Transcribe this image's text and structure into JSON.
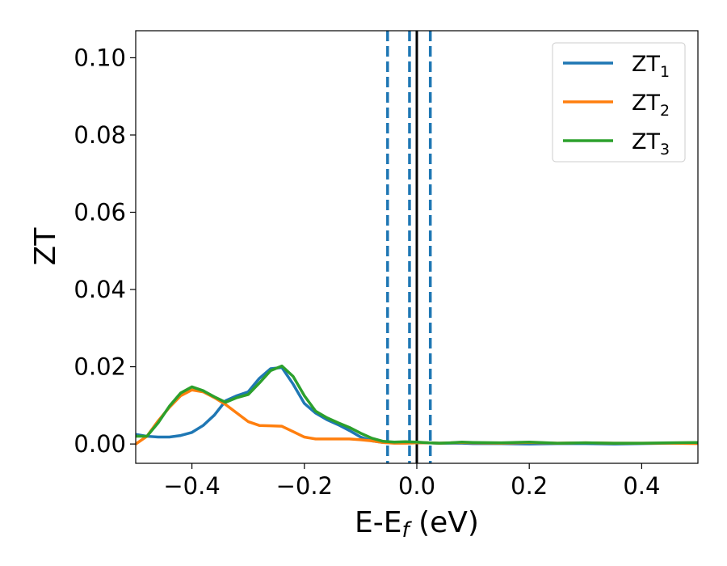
{
  "chart_data": {
    "type": "line",
    "xlabel": "E-E",
    "xlabel_sub": "f",
    "xlabel_unit": " (eV)",
    "ylabel": "ZT",
    "xlim": [
      -0.5,
      0.5
    ],
    "ylim": [
      -0.005,
      0.107
    ],
    "xticks": [
      -0.4,
      -0.2,
      0.0,
      0.2,
      0.4
    ],
    "xtick_labels": [
      "−0.4",
      "−0.2",
      "0.0",
      "0.2",
      "0.4"
    ],
    "yticks": [
      0.0,
      0.02,
      0.04,
      0.06,
      0.08,
      0.1
    ],
    "ytick_labels": [
      "0.00",
      "0.02",
      "0.04",
      "0.06",
      "0.08",
      "0.10"
    ],
    "grid": false,
    "legend_position": "top-right",
    "series": [
      {
        "name": "ZT",
        "name_sub": "1",
        "color": "#1f77b4",
        "x": [
          -0.5,
          -0.48,
          -0.46,
          -0.44,
          -0.42,
          -0.4,
          -0.38,
          -0.36,
          -0.34,
          -0.32,
          -0.3,
          -0.28,
          -0.26,
          -0.24,
          -0.22,
          -0.2,
          -0.18,
          -0.16,
          -0.14,
          -0.12,
          -0.1,
          -0.08,
          -0.06,
          -0.04,
          -0.02,
          0.0,
          0.02,
          0.04,
          0.06,
          0.08,
          0.1,
          0.15,
          0.2,
          0.25,
          0.3,
          0.35,
          0.4,
          0.45,
          0.5
        ],
        "y": [
          0.0025,
          0.002,
          0.0018,
          0.0018,
          0.0022,
          0.003,
          0.0048,
          0.0075,
          0.0112,
          0.0125,
          0.0135,
          0.017,
          0.0195,
          0.0198,
          0.0155,
          0.0105,
          0.008,
          0.0063,
          0.005,
          0.0035,
          0.0018,
          0.0008,
          0.0004,
          0.0003,
          0.0004,
          0.0003,
          0.0003,
          0.0002,
          0.0002,
          0.0002,
          0.0001,
          0.0001,
          0.0,
          0.0001,
          0.0001,
          0.0,
          0.0001,
          0.0002,
          0.0003
        ]
      },
      {
        "name": "ZT",
        "name_sub": "2",
        "color": "#ff7f0e",
        "x": [
          -0.5,
          -0.48,
          -0.46,
          -0.44,
          -0.42,
          -0.4,
          -0.38,
          -0.36,
          -0.34,
          -0.32,
          -0.3,
          -0.28,
          -0.26,
          -0.24,
          -0.22,
          -0.2,
          -0.18,
          -0.16,
          -0.14,
          -0.12,
          -0.1,
          -0.08,
          -0.06,
          -0.04,
          -0.02,
          0.0,
          0.02,
          0.04,
          0.06,
          0.08,
          0.1,
          0.15,
          0.2,
          0.25,
          0.3,
          0.35,
          0.4,
          0.45,
          0.5
        ],
        "y": [
          0.0,
          0.002,
          0.006,
          0.0095,
          0.0125,
          0.014,
          0.0135,
          0.012,
          0.0102,
          0.008,
          0.0058,
          0.0048,
          0.0047,
          0.0046,
          0.0032,
          0.0018,
          0.0013,
          0.0013,
          0.0013,
          0.0013,
          0.0011,
          0.0008,
          0.0004,
          0.0002,
          0.0002,
          0.0003,
          0.0003,
          0.0002,
          0.0003,
          0.0004,
          0.0003,
          0.0002,
          0.0004,
          0.0002,
          0.0003,
          0.0002,
          0.0002,
          0.0002,
          0.0001
        ]
      },
      {
        "name": "ZT",
        "name_sub": "3",
        "color": "#2ca02c",
        "x": [
          -0.5,
          -0.48,
          -0.46,
          -0.44,
          -0.42,
          -0.4,
          -0.38,
          -0.36,
          -0.34,
          -0.32,
          -0.3,
          -0.28,
          -0.26,
          -0.24,
          -0.22,
          -0.2,
          -0.18,
          -0.16,
          -0.14,
          -0.12,
          -0.1,
          -0.08,
          -0.06,
          -0.04,
          -0.02,
          0.0,
          0.02,
          0.04,
          0.06,
          0.08,
          0.1,
          0.15,
          0.2,
          0.25,
          0.3,
          0.35,
          0.4,
          0.45,
          0.5
        ],
        "y": [
          0.002,
          0.002,
          0.0055,
          0.0098,
          0.0132,
          0.0148,
          0.0138,
          0.0122,
          0.0108,
          0.012,
          0.0128,
          0.0158,
          0.019,
          0.0202,
          0.0175,
          0.0125,
          0.0085,
          0.0068,
          0.0055,
          0.0043,
          0.0028,
          0.0015,
          0.0007,
          0.0005,
          0.0006,
          0.0005,
          0.0003,
          0.0002,
          0.0003,
          0.0005,
          0.0004,
          0.0003,
          0.0005,
          0.0002,
          0.0003,
          0.0002,
          0.0002,
          0.0003,
          0.0004
        ]
      }
    ],
    "vlines": [
      {
        "x": -0.052,
        "style": "dashed",
        "color": "#1f77b4"
      },
      {
        "x": -0.013,
        "style": "dashed",
        "color": "#1f77b4"
      },
      {
        "x": 0.0,
        "style": "solid",
        "color": "#000000"
      },
      {
        "x": 0.024,
        "style": "dashed",
        "color": "#1f77b4"
      }
    ]
  }
}
